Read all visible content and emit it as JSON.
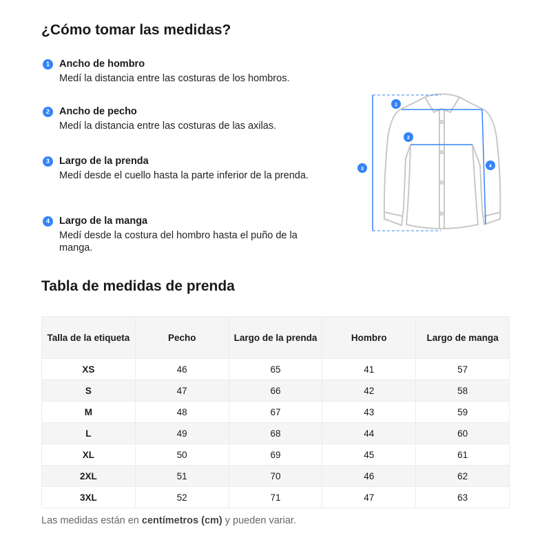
{
  "title": "¿Cómo tomar las medidas?",
  "steps": [
    {
      "n": "1",
      "title": "Ancho de hombro",
      "desc": "Medí la distancia entre las costuras de los hombros."
    },
    {
      "n": "2",
      "title": "Ancho de pecho",
      "desc": "Medí la distancia entre las costuras de las axilas."
    },
    {
      "n": "3",
      "title": "Largo de la prenda",
      "desc": "Medí desde el cuello hasta la parte inferior de la prenda."
    },
    {
      "n": "4",
      "title": "Largo de la manga",
      "desc": "Medí desde la costura del hombro hasta el puño de la manga."
    }
  ],
  "diagram": {
    "badges": [
      "1",
      "2",
      "3",
      "4"
    ],
    "accent": "#3483fa"
  },
  "table_title": "Tabla de medidas de prenda",
  "table": {
    "headers": [
      "Talla de la etiqueta",
      "Pecho",
      "Largo de la prenda",
      "Hombro",
      "Largo de manga"
    ],
    "rows": [
      [
        "XS",
        "46",
        "65",
        "41",
        "57"
      ],
      [
        "S",
        "47",
        "66",
        "42",
        "58"
      ],
      [
        "M",
        "48",
        "67",
        "43",
        "59"
      ],
      [
        "L",
        "49",
        "68",
        "44",
        "60"
      ],
      [
        "XL",
        "50",
        "69",
        "45",
        "61"
      ],
      [
        "2XL",
        "51",
        "70",
        "46",
        "62"
      ],
      [
        "3XL",
        "52",
        "71",
        "47",
        "63"
      ]
    ]
  },
  "footer": {
    "pre": "Las medidas están en ",
    "bold": "centímetros (cm)",
    "post": " y pueden variar."
  }
}
